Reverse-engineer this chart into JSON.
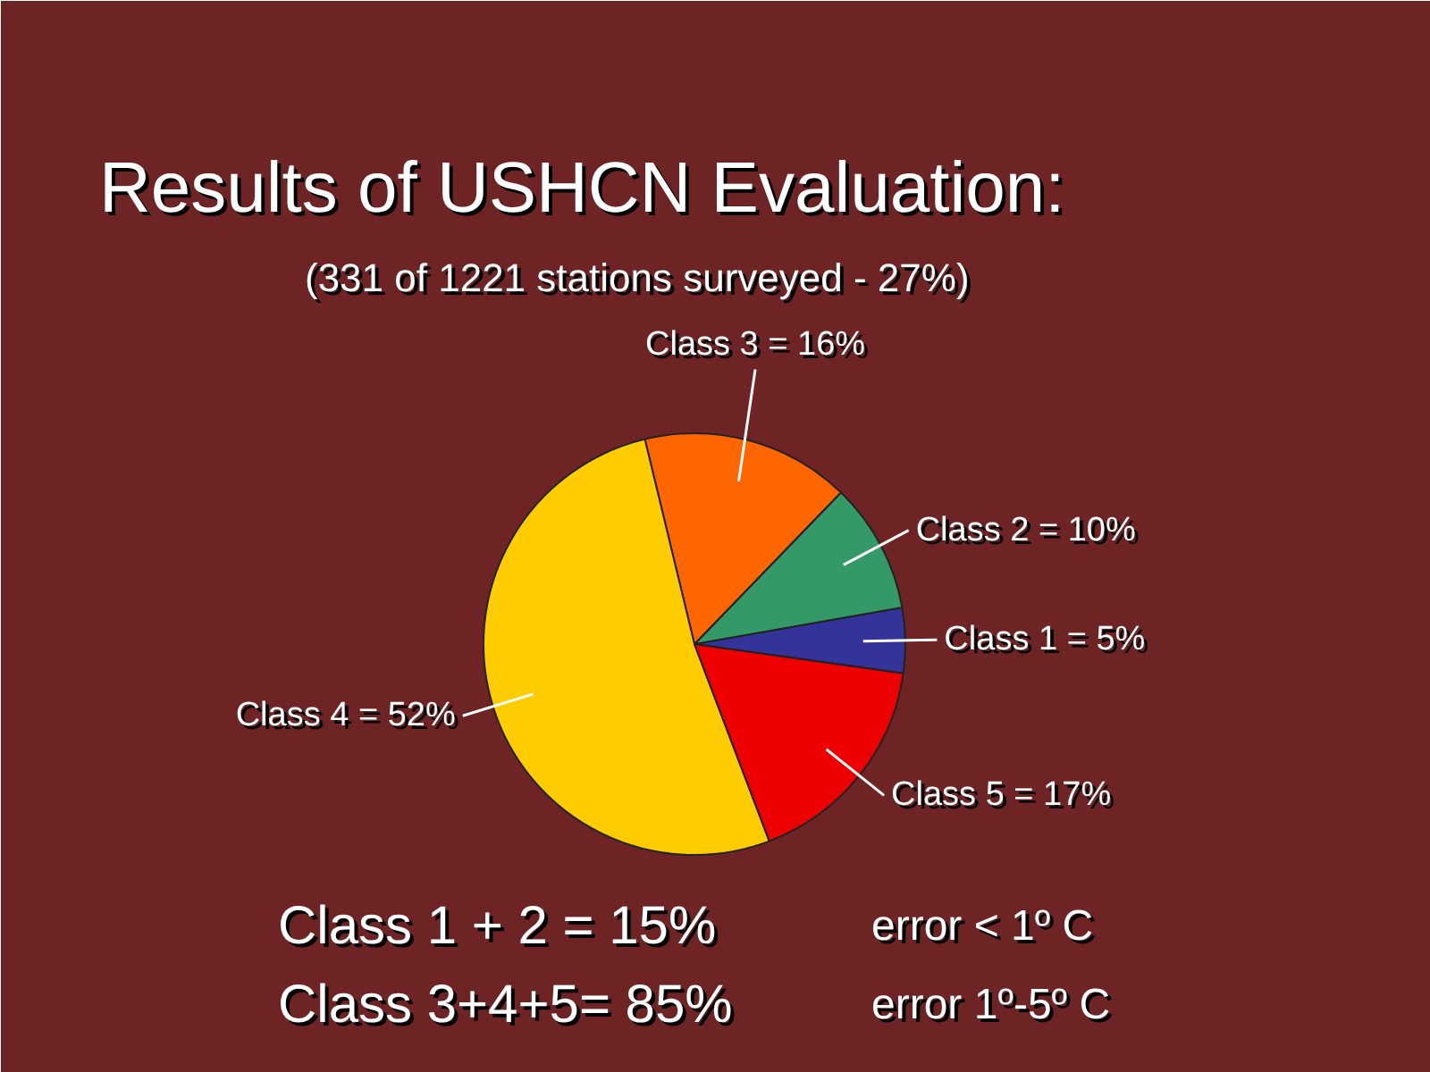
{
  "chart_data": {
    "type": "pie",
    "title": "Results of USHCN Evaluation:",
    "subtitle": "(331 of 1221 stations surveyed - 27%)",
    "categories": [
      "Class 1",
      "Class 2",
      "Class 3",
      "Class 4",
      "Class 5"
    ],
    "values": [
      5,
      10,
      16,
      52,
      17
    ],
    "value_labels": [
      "= 5%",
      "= 10%",
      "= 16%",
      "= 52%",
      "= 17%"
    ],
    "colors": [
      "#333399",
      "#339966",
      "#ff6600",
      "#ffcc00",
      "#ee0000"
    ],
    "annotations": [
      "Class 1 + 2 =  15%",
      "error < 1º C",
      "Class 3+4+5= 85%",
      "error 1º-5º C"
    ]
  }
}
